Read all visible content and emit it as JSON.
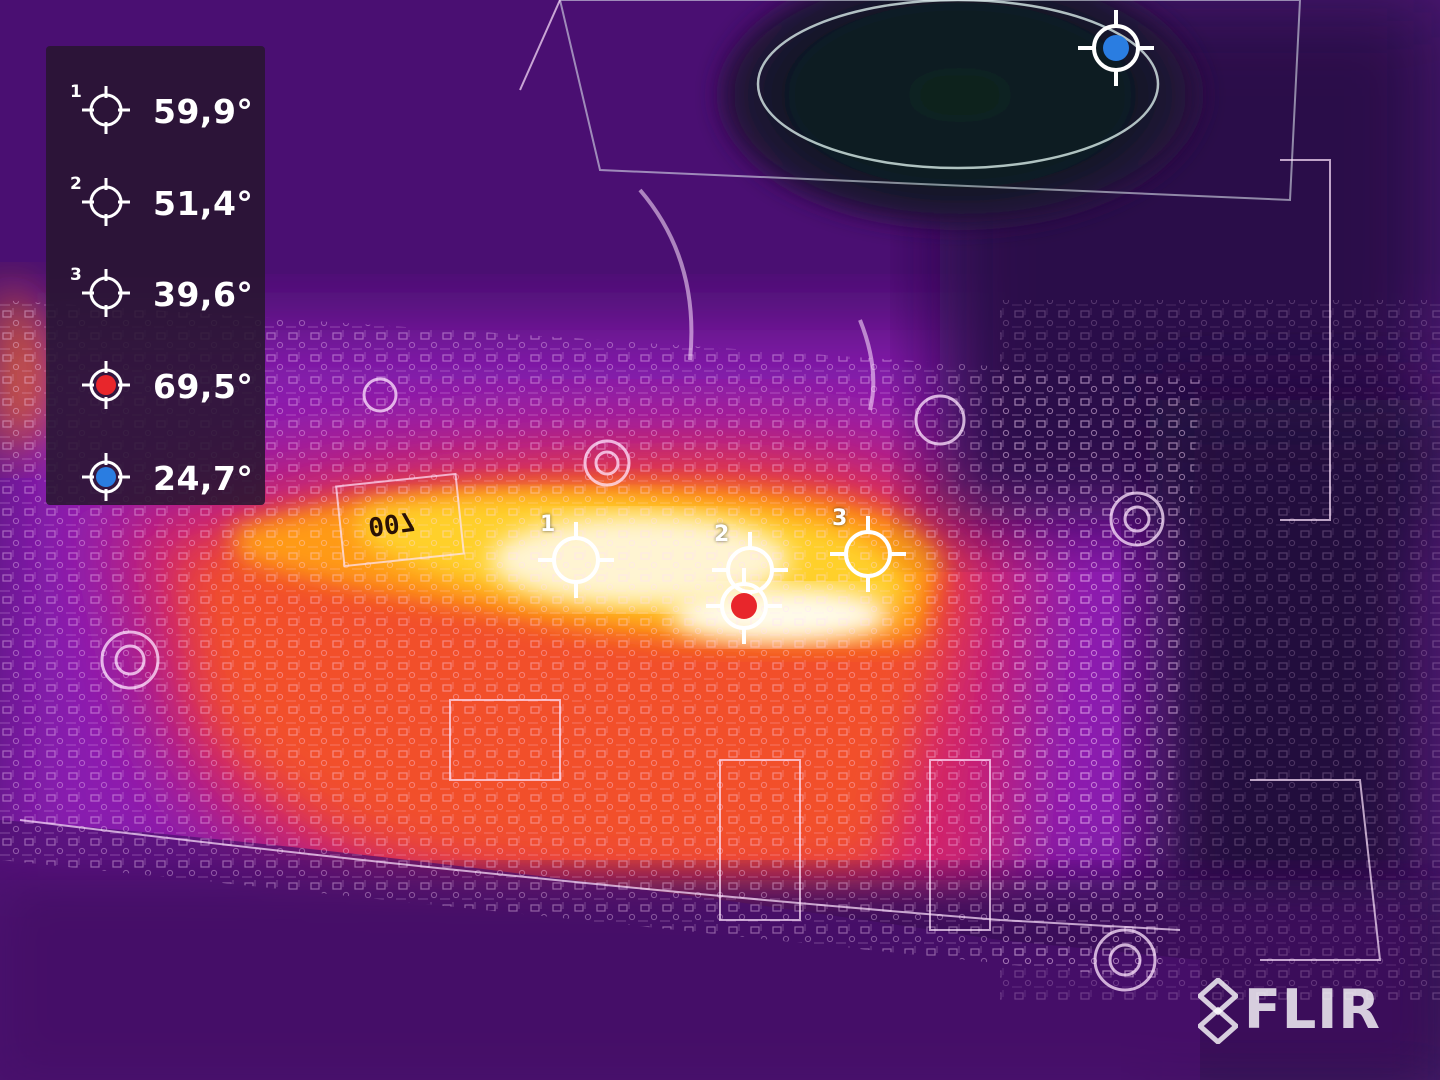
{
  "image": {
    "type": "thermal-camera-view",
    "palette_colors": {
      "cold": "#0e1a24",
      "cool": "#3a0a5a",
      "mid": "#8a1fb0",
      "warm": "#e4207a",
      "hot": "#ff8a12",
      "hotter": "#ffd02a",
      "hottest": "#fff4d2"
    },
    "chip_marking": "007"
  },
  "legend": {
    "rows": [
      {
        "index": "1",
        "icon": "crosshair-icon",
        "value": "59,9°"
      },
      {
        "index": "2",
        "icon": "crosshair-icon",
        "value": "51,4°"
      },
      {
        "index": "3",
        "icon": "crosshair-icon",
        "value": "39,6°"
      },
      {
        "index": "",
        "icon": "hot-spot-crosshair-icon",
        "dot_color": "#e8262b",
        "value": "69,5°"
      },
      {
        "index": "",
        "icon": "cold-spot-crosshair-icon",
        "dot_color": "#2a7de1",
        "value": "24,7°"
      }
    ]
  },
  "markers": {
    "spot1": {
      "label": "1"
    },
    "spot2": {
      "label": "2"
    },
    "spot3": {
      "label": "3"
    },
    "hot": {
      "dot_color": "#e8262b"
    },
    "cold": {
      "dot_color": "#2a7de1"
    }
  },
  "brand": {
    "name": "FLIR"
  }
}
